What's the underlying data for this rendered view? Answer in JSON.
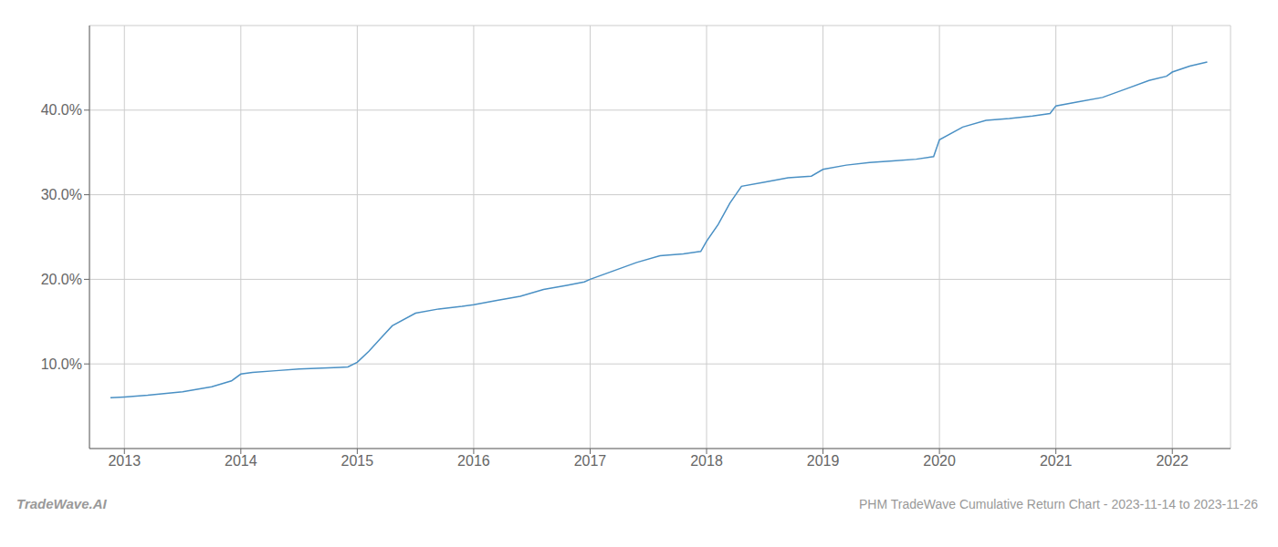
{
  "chart_data": {
    "type": "line",
    "title": "PHM TradeWave Cumulative Return Chart - 2023-11-14 to 2023-11-26",
    "annotations": [
      "TradeWave.AI"
    ],
    "color": "#4a90c4",
    "grid": true,
    "x": [
      2012.88,
      2013.0,
      2013.2,
      2013.5,
      2013.75,
      2013.92,
      2014.0,
      2014.1,
      2014.3,
      2014.5,
      2014.7,
      2014.85,
      2014.92,
      2015.0,
      2015.1,
      2015.2,
      2015.3,
      2015.5,
      2015.7,
      2015.9,
      2016.0,
      2016.2,
      2016.4,
      2016.6,
      2016.8,
      2016.95,
      2017.0,
      2017.2,
      2017.4,
      2017.6,
      2017.8,
      2017.95,
      2018.0,
      2018.1,
      2018.2,
      2018.3,
      2018.5,
      2018.7,
      2018.9,
      2019.0,
      2019.2,
      2019.4,
      2019.6,
      2019.8,
      2019.95,
      2020.0,
      2020.2,
      2020.4,
      2020.6,
      2020.8,
      2020.95,
      2021.0,
      2021.2,
      2021.4,
      2021.6,
      2021.8,
      2021.95,
      2022.0,
      2022.15,
      2022.3
    ],
    "values": [
      6.0,
      6.1,
      6.3,
      6.7,
      7.3,
      8.0,
      8.8,
      9.0,
      9.2,
      9.4,
      9.5,
      9.6,
      9.65,
      10.2,
      11.5,
      13.0,
      14.5,
      16.0,
      16.5,
      16.8,
      17.0,
      17.5,
      18.0,
      18.8,
      19.3,
      19.7,
      20.0,
      21.0,
      22.0,
      22.8,
      23.0,
      23.3,
      24.5,
      26.5,
      29.0,
      31.0,
      31.5,
      32.0,
      32.2,
      33.0,
      33.5,
      33.8,
      34.0,
      34.2,
      34.5,
      36.5,
      38.0,
      38.8,
      39.0,
      39.3,
      39.6,
      40.5,
      41.0,
      41.5,
      42.5,
      43.5,
      44.0,
      44.5,
      45.2,
      45.7
    ],
    "xlim": [
      2012.7,
      2022.5
    ],
    "ylim": [
      0,
      50
    ],
    "xticks": [
      2013,
      2014,
      2015,
      2016,
      2017,
      2018,
      2019,
      2020,
      2021,
      2022
    ],
    "yticks": [
      {
        "value": 10.0,
        "label": "10.0%"
      },
      {
        "value": 20.0,
        "label": "20.0%"
      },
      {
        "value": 30.0,
        "label": "30.0%"
      },
      {
        "value": 40.0,
        "label": "40.0%"
      }
    ]
  }
}
